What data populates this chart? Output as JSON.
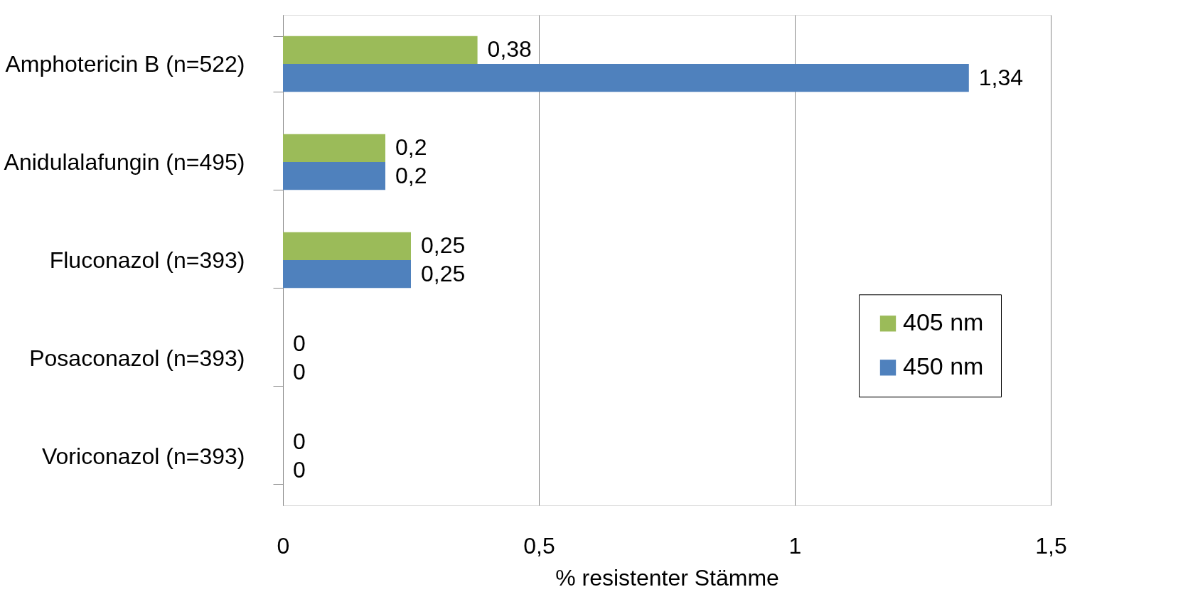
{
  "chart_data": {
    "type": "bar",
    "orientation": "horizontal",
    "xlabel": "% resistenter Stämme",
    "categories": [
      "Amphotericin B (n=522)",
      "Anidulalafungin (n=495)",
      "Fluconazol (n=393)",
      "Posaconazol (n=393)",
      "Voriconazol (n=393)"
    ],
    "series": [
      {
        "name": "405 nm",
        "color": "#9bbb59",
        "values": [
          0.38,
          0.2,
          0.25,
          0,
          0
        ],
        "value_labels": [
          "0,38",
          "0,2",
          "0,25",
          "0",
          "0"
        ]
      },
      {
        "name": "450 nm",
        "color": "#4f81bd",
        "values": [
          1.34,
          0.2,
          0.25,
          0,
          0
        ],
        "value_labels": [
          "1,34",
          "0,2",
          "0,25",
          "0",
          "0"
        ]
      }
    ],
    "xlim": [
      0,
      1.5
    ],
    "xticks": [
      0,
      {
        "value": 0.5,
        "label": "0,5"
      },
      1,
      {
        "value": 1.5,
        "label": "1,5"
      }
    ],
    "grid": "x",
    "legend": "right"
  }
}
